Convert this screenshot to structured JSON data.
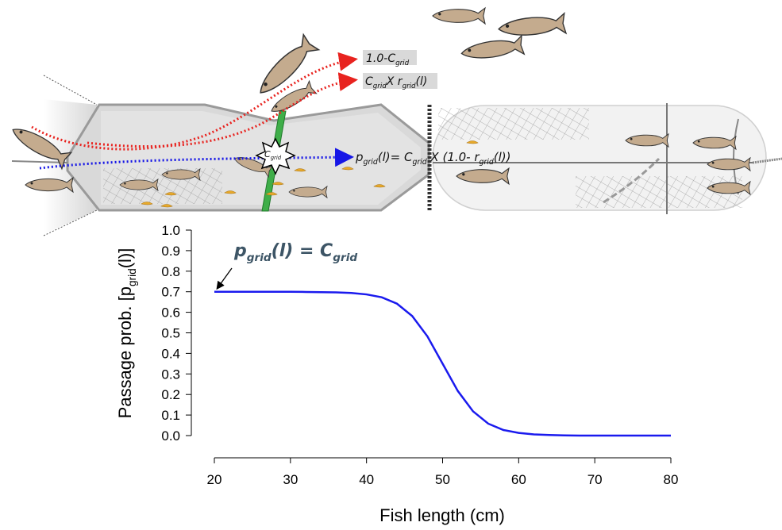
{
  "diagram": {
    "escape_label": [
      "1.0-C",
      "grid"
    ],
    "retain_label": [
      "C",
      "grid",
      "X r",
      "grid",
      "(l)"
    ],
    "grid_label": [
      "C",
      "grid"
    ],
    "passage_label": [
      "p",
      "grid",
      "(l)= C",
      "grid",
      " X (1.0- r",
      "grid",
      "(l))"
    ]
  },
  "chart_data": {
    "type": "line",
    "annotation": [
      "p",
      "grid",
      "(l) = C",
      "grid"
    ],
    "xlabel": "Fish length (cm)",
    "ylabel": [
      "Passage prob. [p",
      "grid",
      "(l)]"
    ],
    "x": [
      20,
      22,
      24,
      26,
      28,
      30,
      32,
      34,
      36,
      38,
      40,
      42,
      44,
      46,
      48,
      50,
      52,
      54,
      56,
      58,
      60,
      62,
      64,
      66,
      68,
      70,
      72,
      74,
      76,
      78,
      80
    ],
    "series": [
      {
        "color": "#1a1aee",
        "values": [
          0.7,
          0.7,
          0.7,
          0.7,
          0.7,
          0.7,
          0.699,
          0.698,
          0.697,
          0.694,
          0.687,
          0.673,
          0.642,
          0.582,
          0.483,
          0.35,
          0.217,
          0.118,
          0.058,
          0.027,
          0.013,
          0.006,
          0.003,
          0.001,
          0.0,
          0.0,
          0.0,
          0.0,
          0.0,
          0.0,
          0.0
        ]
      }
    ],
    "xlim": [
      20,
      80
    ],
    "ylim": [
      0,
      1
    ],
    "xticks": [
      20,
      30,
      40,
      50,
      60,
      70,
      80
    ],
    "yticks": [
      {
        "value": 0,
        "label": "0.0"
      },
      0.1,
      0.2,
      0.3,
      0.4,
      0.5,
      0.6,
      0.7,
      0.8,
      0.9,
      {
        "value": 1,
        "label": "1.0"
      }
    ]
  }
}
